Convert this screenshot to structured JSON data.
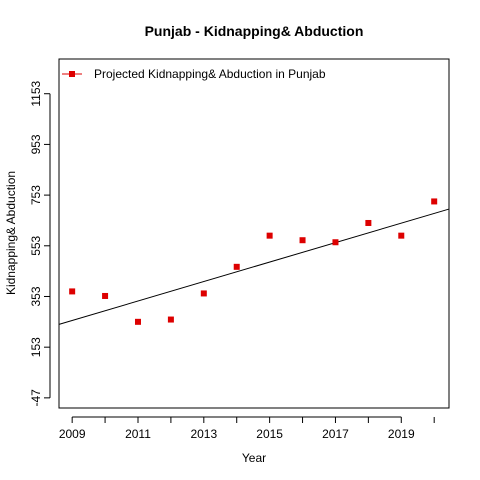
{
  "chart_data": {
    "type": "scatter",
    "title": "Punjab  -  Kidnapping& Abduction",
    "xlabel": "Year",
    "ylabel": "Kidnapping& Abduction",
    "xlim": [
      2008.6,
      2020.45
    ],
    "ylim": [
      -87,
      1290
    ],
    "x_ticks": [
      2009,
      2011,
      2013,
      2015,
      2017,
      2019
    ],
    "y_ticks": [
      -47,
      153,
      353,
      553,
      753,
      953,
      1153
    ],
    "series": [
      {
        "name": "Projected Kidnapping& Abduction  in  Punjab",
        "color": "#dd0000",
        "marker": "square",
        "x": [
          2009,
          2010,
          2011,
          2012,
          2013,
          2014,
          2015,
          2016,
          2017,
          2018,
          2019,
          2020
        ],
        "y": [
          373,
          355,
          253,
          262,
          365,
          470,
          593,
          575,
          567,
          643,
          593,
          728
        ]
      }
    ],
    "trend_line": {
      "color": "#000000",
      "x": [
        2008.6,
        2020.45
      ],
      "y": [
        243,
        698
      ]
    },
    "legend": {
      "placement": "top-left",
      "entries": [
        "Projected Kidnapping& Abduction  in  Punjab"
      ]
    },
    "grid": false
  }
}
